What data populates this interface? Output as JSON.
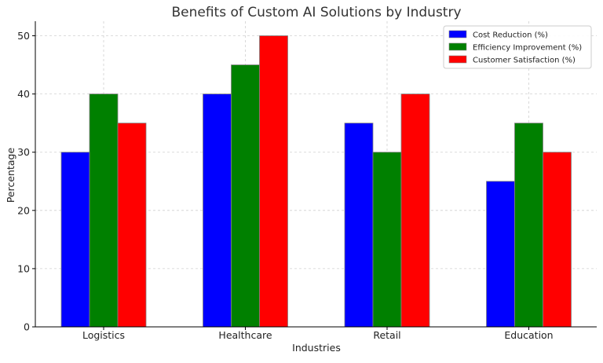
{
  "chart_data": {
    "type": "bar",
    "title": "Benefits of Custom AI Solutions by Industry",
    "xlabel": "Industries",
    "ylabel": "Percentage",
    "categories": [
      "Logistics",
      "Healthcare",
      "Retail",
      "Education"
    ],
    "series": [
      {
        "name": "Cost Reduction (%)",
        "color": "#0000ff",
        "values": [
          30,
          40,
          35,
          25
        ]
      },
      {
        "name": "Efficiency Improvement (%)",
        "color": "#008000",
        "values": [
          40,
          45,
          30,
          35
        ]
      },
      {
        "name": "Customer Satisfaction (%)",
        "color": "#ff0000",
        "values": [
          35,
          50,
          40,
          30
        ]
      }
    ],
    "ylim": [
      0,
      52.5
    ],
    "yticks": [
      0,
      10,
      20,
      30,
      40,
      50
    ],
    "grid": true,
    "legend_position": "top-right"
  }
}
